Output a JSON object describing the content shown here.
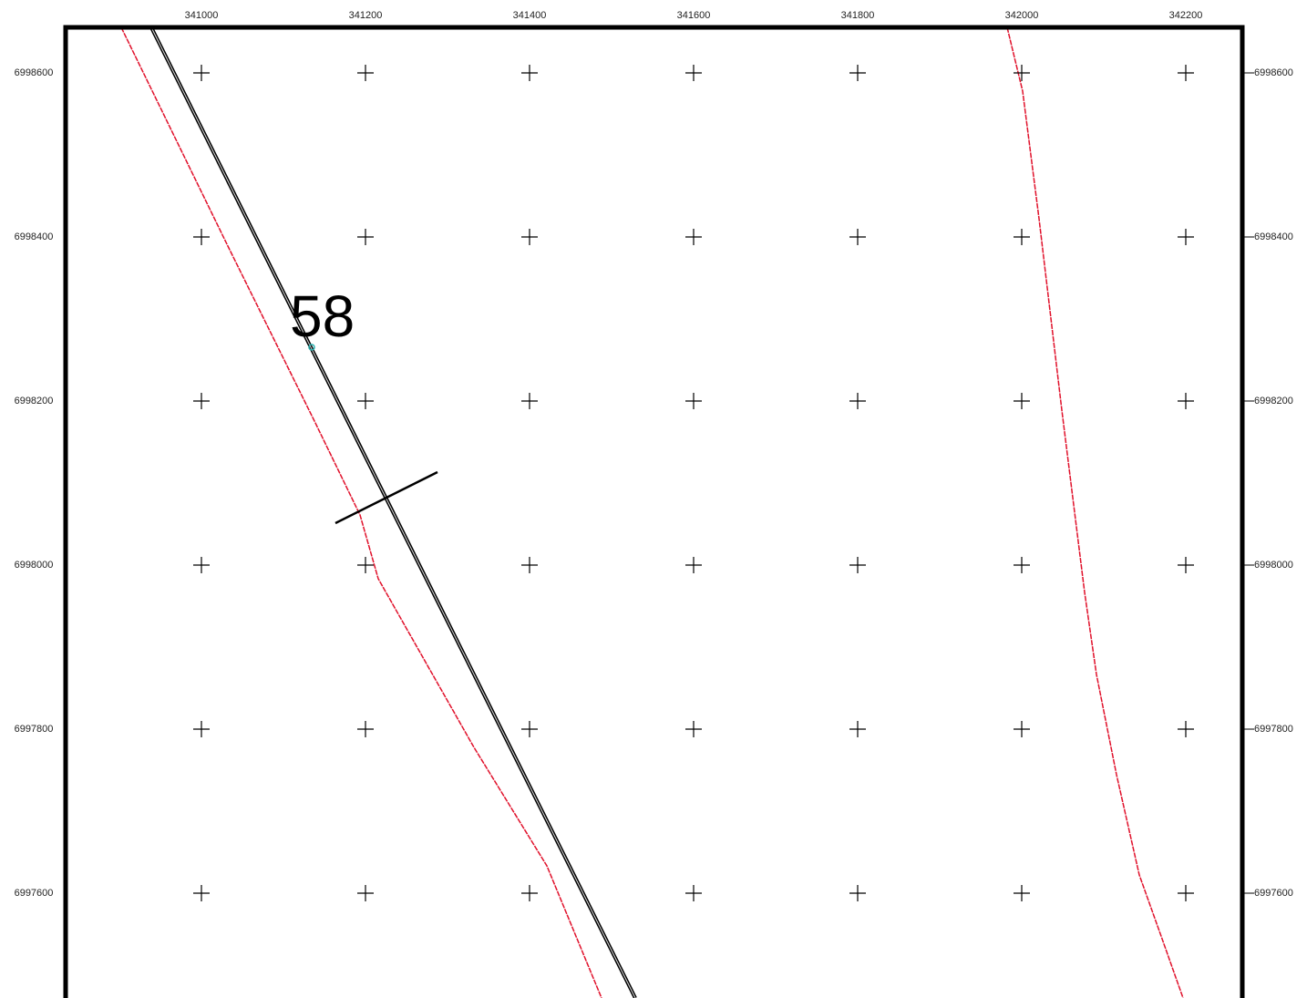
{
  "map": {
    "x_ticks": [
      341000,
      341200,
      341400,
      341600,
      341800,
      342000,
      342200
    ],
    "y_ticks": [
      6998600,
      6998400,
      6998200,
      6998000,
      6997800,
      6997600
    ],
    "label": "58"
  }
}
